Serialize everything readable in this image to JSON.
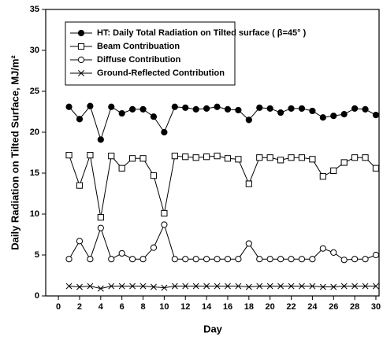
{
  "chart_data": {
    "type": "line",
    "x_label": "Day",
    "y_label": "Daily Radiation on Tilted Surface, MJ/m²",
    "x": [
      1,
      2,
      3,
      4,
      5,
      6,
      7,
      8,
      9,
      10,
      11,
      12,
      13,
      14,
      15,
      16,
      17,
      18,
      19,
      20,
      21,
      22,
      23,
      24,
      25,
      26,
      27,
      28,
      29,
      30
    ],
    "series": [
      {
        "name": "HT: Daily Total Radiation on Tilted surface ( β=45° )",
        "color": "#000000",
        "marker": "filled-circle",
        "values": [
          23.1,
          21.6,
          23.2,
          19.1,
          23.1,
          22.3,
          22.8,
          22.8,
          21.9,
          20.0,
          23.1,
          23.0,
          22.8,
          22.9,
          23.1,
          22.8,
          22.7,
          21.5,
          23.0,
          22.9,
          22.4,
          22.9,
          22.9,
          22.6,
          21.8,
          22.0,
          22.2,
          22.9,
          22.8,
          22.1
        ]
      },
      {
        "name": "Beam Contribuation",
        "color": "#000000",
        "marker": "open-square",
        "values": [
          17.2,
          13.5,
          17.2,
          9.6,
          17.1,
          15.6,
          16.8,
          16.8,
          14.7,
          10.1,
          17.1,
          17.0,
          16.9,
          17.0,
          17.1,
          16.8,
          16.7,
          13.7,
          16.9,
          16.9,
          16.6,
          16.9,
          16.9,
          16.7,
          14.6,
          15.3,
          16.3,
          16.9,
          16.9,
          15.6
        ]
      },
      {
        "name": "Diffuse Contribution",
        "color": "#000000",
        "marker": "open-circle",
        "values": [
          4.5,
          6.7,
          4.5,
          8.3,
          4.5,
          5.2,
          4.5,
          4.5,
          5.9,
          8.7,
          4.5,
          4.5,
          4.5,
          4.5,
          4.5,
          4.5,
          4.5,
          6.4,
          4.5,
          4.5,
          4.5,
          4.5,
          4.5,
          4.5,
          5.8,
          5.3,
          4.4,
          4.5,
          4.5,
          5.0
        ]
      },
      {
        "name": "Ground-Reflected Contribution",
        "color": "#000000",
        "marker": "cross",
        "values": [
          1.2,
          1.1,
          1.2,
          0.9,
          1.2,
          1.2,
          1.2,
          1.2,
          1.1,
          1.0,
          1.2,
          1.2,
          1.2,
          1.2,
          1.2,
          1.2,
          1.2,
          1.1,
          1.2,
          1.2,
          1.2,
          1.2,
          1.2,
          1.2,
          1.1,
          1.1,
          1.2,
          1.2,
          1.2,
          1.2
        ]
      }
    ],
    "xlim": [
      -1.2,
      30.3
    ],
    "ylim": [
      0,
      35
    ],
    "xticks": [
      0,
      2,
      4,
      6,
      8,
      10,
      12,
      14,
      16,
      18,
      20,
      22,
      24,
      26,
      28,
      30
    ],
    "yticks": [
      0,
      5,
      10,
      15,
      20,
      25,
      30,
      35
    ],
    "legend": "upper left"
  }
}
